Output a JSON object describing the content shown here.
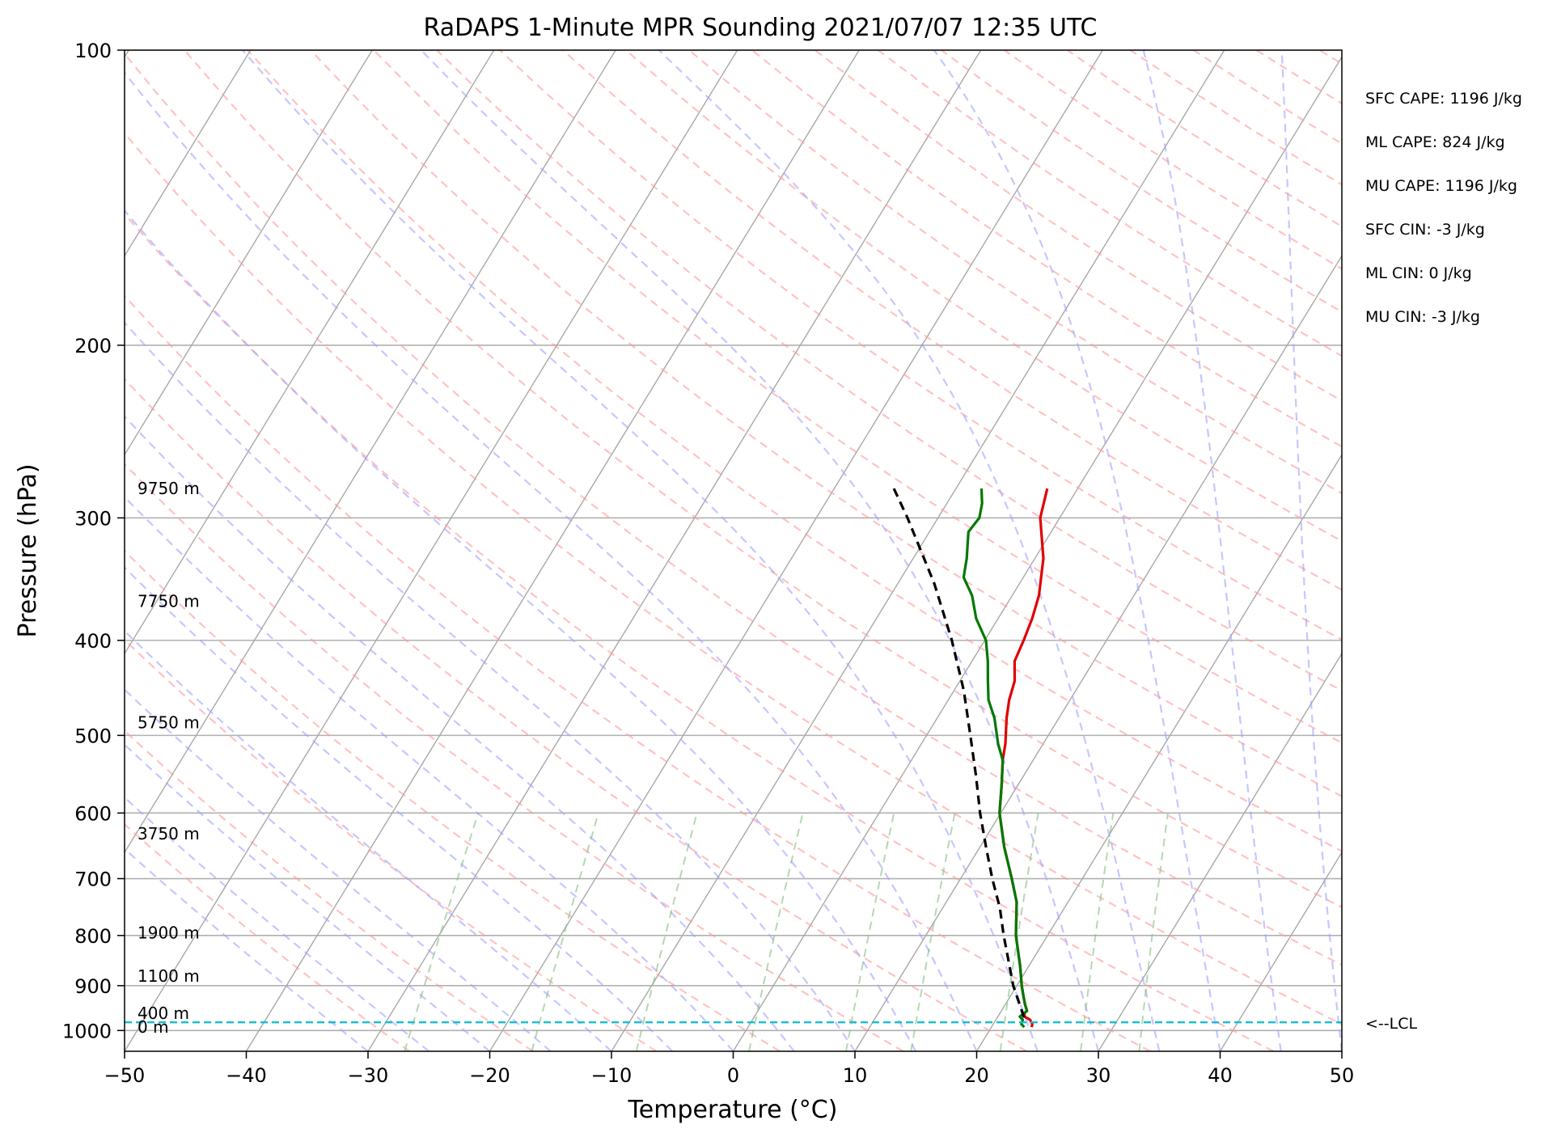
{
  "chart_data": {
    "type": "line",
    "title": "RaDAPS 1-Minute MPR Sounding 2021/07/07 12:35 UTC",
    "xlabel": "Temperature (°C)",
    "ylabel": "Pressure (hPa)",
    "xlim": [
      -50,
      50
    ],
    "ylim": [
      1050,
      100
    ],
    "y_scale": "log",
    "skew": "skew-T log-p",
    "grid": true,
    "x_ticks": [
      -50,
      -40,
      -30,
      -20,
      -10,
      0,
      10,
      20,
      30,
      40,
      50
    ],
    "x_tick_labels": [
      "−50",
      "−40",
      "−30",
      "−20",
      "−10",
      "0",
      "10",
      "20",
      "30",
      "40",
      "50"
    ],
    "y_ticks": [
      100,
      200,
      300,
      400,
      500,
      600,
      700,
      800,
      900,
      1000
    ],
    "y_tick_labels": [
      "100",
      "200",
      "300",
      "400",
      "500",
      "600",
      "700",
      "800",
      "900",
      "1000"
    ],
    "height_labels": [
      {
        "text": "9750 m",
        "p": 280
      },
      {
        "text": "7750 m",
        "p": 365
      },
      {
        "text": "5750 m",
        "p": 485
      },
      {
        "text": "3750 m",
        "p": 630
      },
      {
        "text": "1900 m",
        "p": 795
      },
      {
        "text": "1100 m",
        "p": 880
      },
      {
        "text": "400 m",
        "p": 960
      },
      {
        "text": "0 m",
        "p": 992
      }
    ],
    "indices": [
      "SFC CAPE: 1196 J/kg",
      "ML CAPE: 824 J/kg",
      "MU CAPE: 1196 J/kg",
      "SFC CIN: -3 J/kg",
      "ML CIN: 0 J/kg",
      "MU CIN: -3 J/kg"
    ],
    "lcl": {
      "label": "<--LCL",
      "p": 981
    },
    "series": [
      {
        "color": "#e00000",
        "p": [
          992,
          985,
          975,
          968,
          960,
          955,
          940,
          920,
          900,
          860,
          800,
          740,
          700,
          650,
          600,
          560,
          530,
          510,
          480,
          460,
          440,
          420,
          400,
          380,
          360,
          330,
          300,
          280
        ],
        "t": [
          23.3,
          23.2,
          22.8,
          22.2,
          22.0,
          22.1,
          21.6,
          21.0,
          20.4,
          19.3,
          17.4,
          15.8,
          14.2,
          12.0,
          9.9,
          8.6,
          7.5,
          6.9,
          5.7,
          5.0,
          4.5,
          3.5,
          3.2,
          2.8,
          2.2,
          0.7,
          -1.6,
          -2.5
        ]
      },
      {
        "color": "#007800",
        "p": [
          992,
          985,
          975,
          968,
          960,
          955,
          940,
          920,
          900,
          860,
          800,
          740,
          700,
          650,
          600,
          560,
          530,
          510,
          480,
          460,
          440,
          420,
          400,
          380,
          360,
          345,
          330,
          310,
          300,
          290,
          280
        ],
        "t": [
          22.7,
          22.3,
          22.2,
          21.8,
          22.0,
          22.1,
          21.6,
          21.0,
          20.4,
          19.3,
          17.4,
          15.8,
          14.2,
          12.0,
          9.9,
          8.6,
          7.5,
          6.3,
          4.7,
          3.3,
          2.3,
          1.3,
          0.1,
          -1.8,
          -3.3,
          -4.9,
          -5.6,
          -6.8,
          -6.6,
          -7.1,
          -7.9
        ]
      },
      {
        "color": "#000000",
        "dashed": true,
        "p": [
          970,
          930,
          900,
          850,
          800,
          750,
          700,
          650,
          600,
          550,
          500,
          450,
          400,
          350,
          300,
          280
        ],
        "t": [
          22.2,
          20.8,
          19.7,
          18.1,
          16.4,
          14.7,
          12.6,
          10.5,
          8.3,
          6.1,
          3.6,
          0.8,
          -2.7,
          -7.0,
          -12.5,
          -15.1
        ]
      }
    ]
  }
}
